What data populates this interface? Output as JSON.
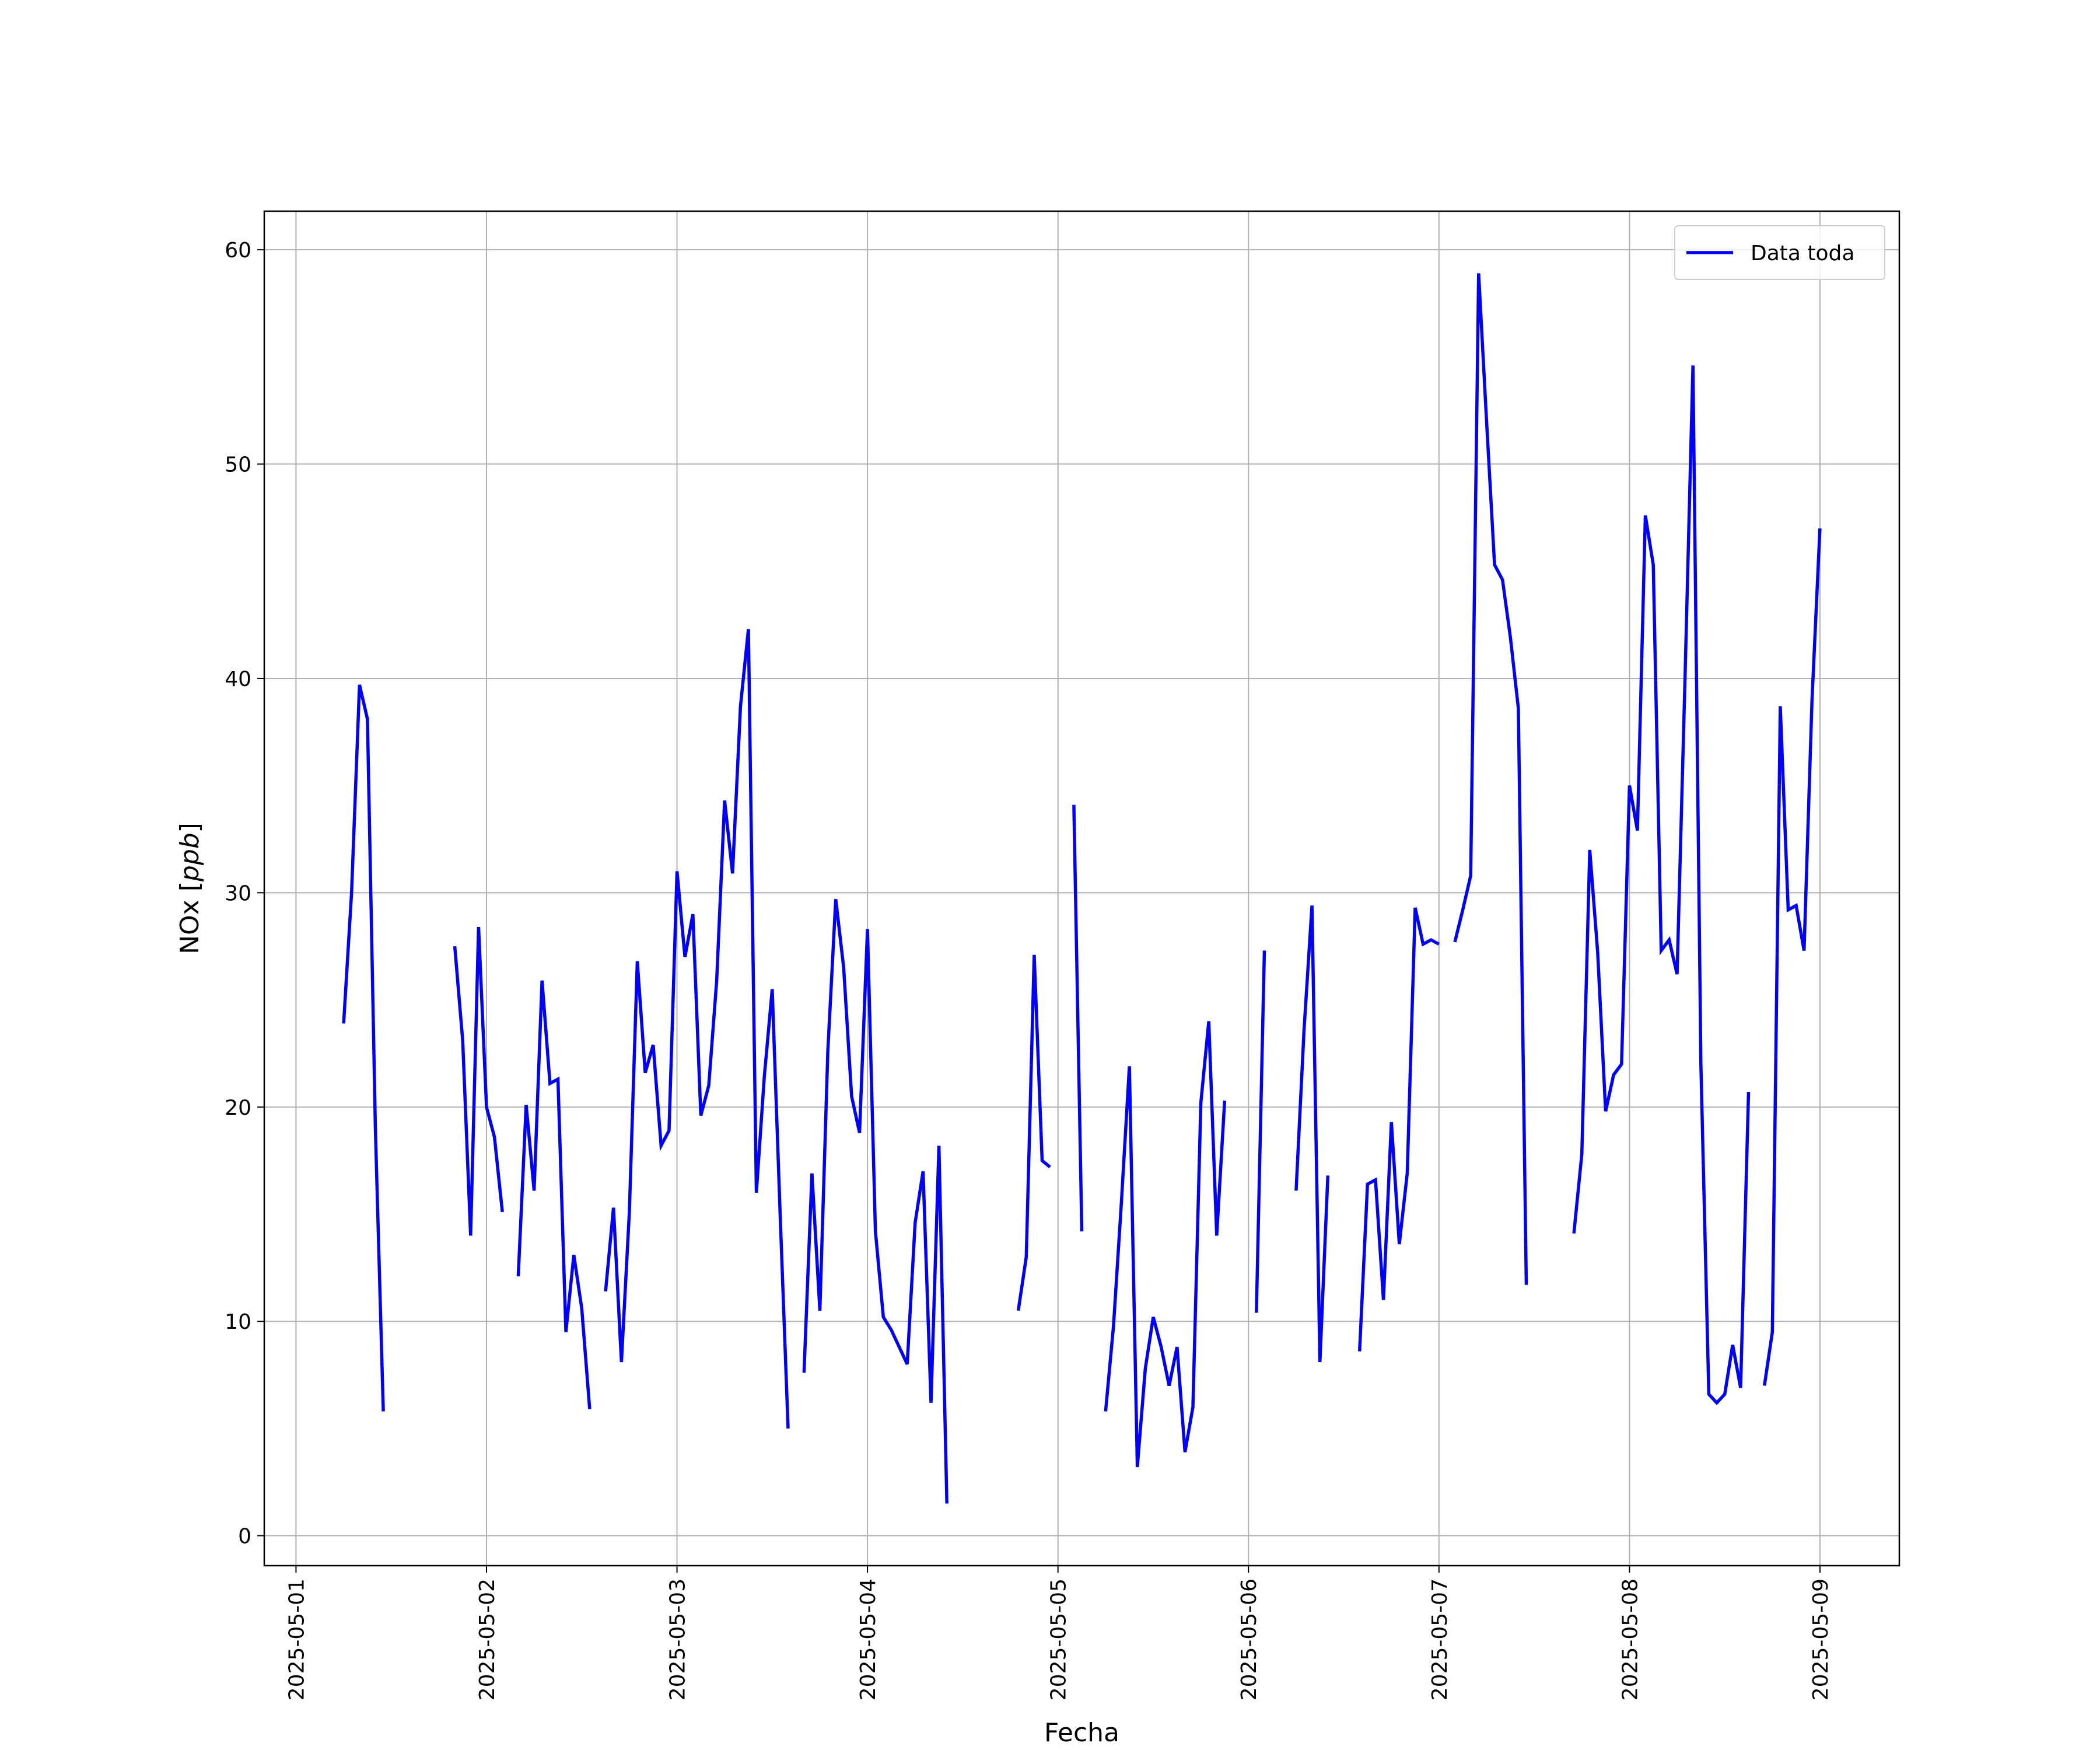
{
  "chart_data": {
    "type": "line",
    "xlabel": "Fecha",
    "ylabel": "NOx [ppb]",
    "ylabel_prefix": "NOx [",
    "ylabel_unit": "ppb",
    "ylabel_suffix": "]",
    "xlim": [
      "2025-04-30T20:00",
      "2025-05-09T10:00"
    ],
    "ylim": [
      -1.4,
      61.8
    ],
    "x_ticks": [
      "2025-05-01",
      "2025-05-02",
      "2025-05-03",
      "2025-05-04",
      "2025-05-05",
      "2025-05-06",
      "2025-05-07",
      "2025-05-08",
      "2025-05-09"
    ],
    "y_ticks": [
      0,
      10,
      20,
      30,
      40,
      50,
      60
    ],
    "grid": true,
    "legend_position": "top-right",
    "series": [
      {
        "name": "Data toda",
        "color": "#0000ff",
        "segments": [
          [
            [
              "2025-05-01T06:00",
              23.9
            ],
            [
              "2025-05-01T07:00",
              30.0
            ],
            [
              "2025-05-01T08:00",
              39.7
            ],
            [
              "2025-05-01T09:00",
              38.1
            ],
            [
              "2025-05-01T10:00",
              19.0
            ],
            [
              "2025-05-01T11:00",
              5.8
            ]
          ],
          [
            [
              "2025-05-01T20:00",
              27.5
            ],
            [
              "2025-05-01T21:00",
              23.1
            ],
            [
              "2025-05-01T22:00",
              14.0
            ],
            [
              "2025-05-01T23:00",
              28.4
            ],
            [
              "2025-05-02T00:00",
              20.0
            ],
            [
              "2025-05-02T01:00",
              18.6
            ],
            [
              "2025-05-02T02:00",
              15.1
            ]
          ],
          [
            [
              "2025-05-02T04:00",
              12.1
            ],
            [
              "2025-05-02T05:00",
              20.1
            ],
            [
              "2025-05-02T06:00",
              16.1
            ],
            [
              "2025-05-02T07:00",
              25.9
            ],
            [
              "2025-05-02T08:00",
              21.1
            ],
            [
              "2025-05-02T09:00",
              21.3
            ],
            [
              "2025-05-02T10:00",
              9.5
            ],
            [
              "2025-05-02T11:00",
              13.1
            ],
            [
              "2025-05-02T12:00",
              10.6
            ],
            [
              "2025-05-02T13:00",
              5.9
            ]
          ],
          [
            [
              "2025-05-02T15:00",
              11.4
            ],
            [
              "2025-05-02T16:00",
              15.3
            ],
            [
              "2025-05-02T17:00",
              8.1
            ],
            [
              "2025-05-02T18:00",
              15.1
            ],
            [
              "2025-05-02T19:00",
              26.8
            ],
            [
              "2025-05-02T20:00",
              21.6
            ],
            [
              "2025-05-02T21:00",
              22.9
            ],
            [
              "2025-05-02T22:00",
              18.2
            ],
            [
              "2025-05-02T23:00",
              18.9
            ],
            [
              "2025-05-03T00:00",
              31.0
            ],
            [
              "2025-05-03T01:00",
              27.0
            ],
            [
              "2025-05-03T02:00",
              29.0
            ],
            [
              "2025-05-03T03:00",
              19.6
            ],
            [
              "2025-05-03T04:00",
              21.0
            ],
            [
              "2025-05-03T05:00",
              25.9
            ],
            [
              "2025-05-03T06:00",
              34.3
            ],
            [
              "2025-05-03T07:00",
              30.9
            ],
            [
              "2025-05-03T08:00",
              38.7
            ],
            [
              "2025-05-03T09:00",
              42.3
            ],
            [
              "2025-05-03T10:00",
              16.0
            ],
            [
              "2025-05-03T11:00",
              21.4
            ],
            [
              "2025-05-03T12:00",
              25.5
            ],
            [
              "2025-05-03T13:00",
              15.0
            ],
            [
              "2025-05-03T14:00",
              5.0
            ]
          ],
          [
            [
              "2025-05-03T16:00",
              7.6
            ],
            [
              "2025-05-03T17:00",
              16.9
            ],
            [
              "2025-05-03T18:00",
              10.5
            ],
            [
              "2025-05-03T19:00",
              22.6
            ],
            [
              "2025-05-03T20:00",
              29.7
            ],
            [
              "2025-05-03T21:00",
              26.5
            ],
            [
              "2025-05-03T22:00",
              20.5
            ],
            [
              "2025-05-03T23:00",
              18.8
            ],
            [
              "2025-05-04T00:00",
              28.3
            ],
            [
              "2025-05-04T01:00",
              14.2
            ],
            [
              "2025-05-04T02:00",
              10.2
            ],
            [
              "2025-05-04T03:00",
              9.6
            ],
            [
              "2025-05-04T04:00",
              8.8
            ],
            [
              "2025-05-04T05:00",
              8.0
            ],
            [
              "2025-05-04T06:00",
              14.6
            ],
            [
              "2025-05-04T07:00",
              17.0
            ],
            [
              "2025-05-04T08:00",
              6.2
            ],
            [
              "2025-05-04T09:00",
              18.2
            ],
            [
              "2025-05-04T10:00",
              1.5
            ]
          ],
          [
            [
              "2025-05-04T19:00",
              10.5
            ],
            [
              "2025-05-04T20:00",
              13.0
            ],
            [
              "2025-05-04T21:00",
              27.1
            ],
            [
              "2025-05-04T22:00",
              17.5
            ],
            [
              "2025-05-04T23:00",
              17.2
            ]
          ],
          [
            [
              "2025-05-05T02:00",
              34.1
            ],
            [
              "2025-05-05T03:00",
              14.2
            ]
          ],
          [
            [
              "2025-05-05T06:00",
              5.8
            ],
            [
              "2025-05-05T07:00",
              9.8
            ],
            [
              "2025-05-05T08:00",
              15.6
            ],
            [
              "2025-05-05T09:00",
              21.9
            ],
            [
              "2025-05-05T10:00",
              3.2
            ],
            [
              "2025-05-05T11:00",
              7.8
            ],
            [
              "2025-05-05T12:00",
              10.2
            ],
            [
              "2025-05-05T13:00",
              8.8
            ],
            [
              "2025-05-05T14:00",
              7.0
            ],
            [
              "2025-05-05T15:00",
              8.8
            ],
            [
              "2025-05-05T16:00",
              3.9
            ],
            [
              "2025-05-05T17:00",
              6.0
            ],
            [
              "2025-05-05T18:00",
              20.2
            ],
            [
              "2025-05-05T19:00",
              24.0
            ],
            [
              "2025-05-05T20:00",
              14.0
            ],
            [
              "2025-05-05T21:00",
              20.3
            ]
          ],
          [
            [
              "2025-05-06T01:00",
              10.4
            ],
            [
              "2025-05-06T02:00",
              27.3
            ]
          ],
          [
            [
              "2025-05-06T06:00",
              16.1
            ],
            [
              "2025-05-06T07:00",
              23.6
            ],
            [
              "2025-05-06T08:00",
              29.4
            ],
            [
              "2025-05-06T09:00",
              8.1
            ],
            [
              "2025-05-06T10:00",
              16.8
            ]
          ],
          [
            [
              "2025-05-06T14:00",
              8.6
            ],
            [
              "2025-05-06T15:00",
              16.4
            ],
            [
              "2025-05-06T16:00",
              16.6
            ],
            [
              "2025-05-06T17:00",
              11.0
            ],
            [
              "2025-05-06T18:00",
              19.3
            ],
            [
              "2025-05-06T19:00",
              13.6
            ],
            [
              "2025-05-06T20:00",
              16.9
            ],
            [
              "2025-05-06T21:00",
              29.3
            ],
            [
              "2025-05-06T22:00",
              27.6
            ],
            [
              "2025-05-06T23:00",
              27.8
            ],
            [
              "2025-05-07T00:00",
              27.6
            ]
          ],
          [
            [
              "2025-05-07T02:00",
              27.7
            ],
            [
              "2025-05-07T03:00",
              29.2
            ],
            [
              "2025-05-07T04:00",
              30.8
            ],
            [
              "2025-05-07T05:00",
              58.9
            ],
            [
              "2025-05-07T06:00",
              52.0
            ],
            [
              "2025-05-07T07:00",
              45.3
            ],
            [
              "2025-05-07T08:00",
              44.6
            ],
            [
              "2025-05-07T09:00",
              41.9
            ],
            [
              "2025-05-07T10:00",
              38.6
            ],
            [
              "2025-05-07T11:00",
              11.7
            ]
          ],
          [
            [
              "2025-05-07T17:00",
              14.1
            ],
            [
              "2025-05-07T18:00",
              17.8
            ],
            [
              "2025-05-07T19:00",
              32.0
            ],
            [
              "2025-05-07T20:00",
              27.2
            ],
            [
              "2025-05-07T21:00",
              19.8
            ],
            [
              "2025-05-07T22:00",
              21.5
            ],
            [
              "2025-05-07T23:00",
              22.0
            ],
            [
              "2025-05-08T00:00",
              35.0
            ],
            [
              "2025-05-08T01:00",
              32.9
            ],
            [
              "2025-05-08T02:00",
              47.6
            ],
            [
              "2025-05-08T03:00",
              45.3
            ],
            [
              "2025-05-08T04:00",
              27.3
            ],
            [
              "2025-05-08T05:00",
              27.8
            ],
            [
              "2025-05-08T06:00",
              26.2
            ],
            [
              "2025-05-08T07:00",
              40.0
            ],
            [
              "2025-05-08T08:00",
              54.6
            ],
            [
              "2025-05-08T09:00",
              22.0
            ],
            [
              "2025-05-08T10:00",
              6.6
            ],
            [
              "2025-05-08T11:00",
              6.2
            ],
            [
              "2025-05-08T12:00",
              6.6
            ],
            [
              "2025-05-08T13:00",
              8.9
            ],
            [
              "2025-05-08T14:00",
              6.9
            ],
            [
              "2025-05-08T15:00",
              20.7
            ]
          ],
          [
            [
              "2025-05-08T17:00",
              7.0
            ],
            [
              "2025-05-08T18:00",
              9.5
            ],
            [
              "2025-05-08T19:00",
              38.7
            ],
            [
              "2025-05-08T20:00",
              29.2
            ],
            [
              "2025-05-08T21:00",
              29.4
            ],
            [
              "2025-05-08T22:00",
              27.3
            ],
            [
              "2025-05-08T23:00",
              39.0
            ],
            [
              "2025-05-09T00:00",
              47.0
            ]
          ]
        ]
      }
    ]
  }
}
